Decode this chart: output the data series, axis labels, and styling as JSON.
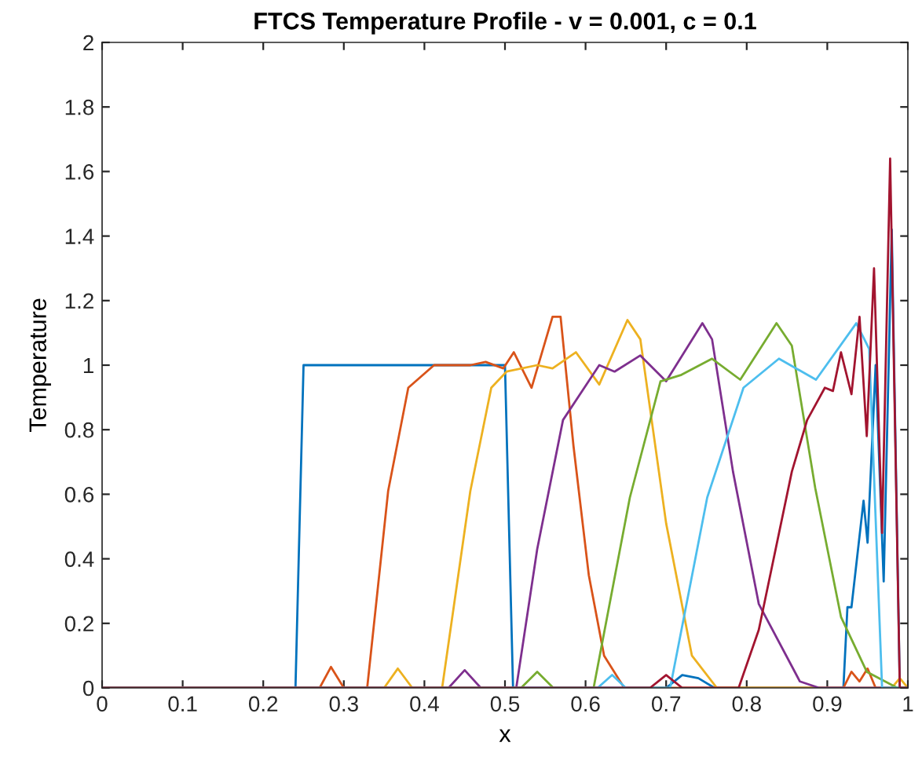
{
  "chart_data": {
    "type": "line",
    "title": "FTCS Temperature Profile - v = 0.001, c = 0.1",
    "xlabel": "x",
    "ylabel": "Temperature",
    "xlim": [
      0,
      1
    ],
    "ylim": [
      0,
      2
    ],
    "xticks": [
      0,
      0.1,
      0.2,
      0.3,
      0.4,
      0.5,
      0.6,
      0.7,
      0.8,
      0.9,
      1
    ],
    "yticks": [
      0,
      0.2,
      0.4,
      0.6,
      0.8,
      1,
      1.2,
      1.4,
      1.6,
      1.8,
      2
    ],
    "grid": false,
    "legend": false,
    "marker": "none",
    "line_style": "solid",
    "series": [
      {
        "color": "#0072bd",
        "x": [
          0,
          0.24,
          0.25,
          0.5,
          0.51,
          0.7,
          0.72,
          0.74,
          0.76,
          0.92,
          0.925,
          0.93,
          0.945,
          0.95,
          0.96,
          0.97,
          0.98,
          0.99,
          1
        ],
        "values": [
          0,
          0,
          1,
          1,
          0,
          0,
          0.04,
          0.03,
          0,
          0,
          0.25,
          0.25,
          0.58,
          0.45,
          1.0,
          0.33,
          1.42,
          0,
          0
        ]
      },
      {
        "color": "#d95319",
        "x": [
          0,
          0.27,
          0.284,
          0.3,
          0.329,
          0.355,
          0.38,
          0.412,
          0.457,
          0.476,
          0.498,
          0.511,
          0.533,
          0.559,
          0.569,
          0.585,
          0.604,
          0.623,
          0.648,
          0.92,
          0.93,
          0.94,
          0.95,
          0.96,
          1
        ],
        "values": [
          0,
          0,
          0.065,
          0,
          0,
          0.61,
          0.93,
          1.0,
          1.0,
          1.01,
          0.99,
          1.04,
          0.93,
          1.15,
          1.15,
          0.75,
          0.35,
          0.1,
          0,
          0,
          0.05,
          0.02,
          0.06,
          0,
          0
        ]
      },
      {
        "color": "#edb120",
        "x": [
          0,
          0.35,
          0.367,
          0.385,
          0.422,
          0.457,
          0.483,
          0.502,
          0.54,
          0.559,
          0.588,
          0.617,
          0.652,
          0.668,
          0.7,
          0.732,
          0.763,
          0.98,
          0.99,
          1
        ],
        "values": [
          0,
          0,
          0.06,
          0,
          0,
          0.61,
          0.93,
          0.98,
          1.0,
          0.99,
          1.04,
          0.94,
          1.14,
          1.08,
          0.51,
          0.1,
          0,
          0,
          0.03,
          0
        ]
      },
      {
        "color": "#7e2f8e",
        "x": [
          0,
          0.43,
          0.45,
          0.47,
          0.514,
          0.54,
          0.572,
          0.617,
          0.636,
          0.668,
          0.7,
          0.745,
          0.757,
          0.783,
          0.815,
          0.866,
          0.89,
          1
        ],
        "values": [
          0,
          0,
          0.055,
          0,
          0,
          0.43,
          0.83,
          1.0,
          0.98,
          1.03,
          0.95,
          1.13,
          1.08,
          0.67,
          0.26,
          0.02,
          0,
          0
        ]
      },
      {
        "color": "#77ac30",
        "x": [
          0,
          0.52,
          0.54,
          0.56,
          0.61,
          0.655,
          0.693,
          0.719,
          0.757,
          0.792,
          0.837,
          0.856,
          0.885,
          0.917,
          0.949,
          0.987,
          1
        ],
        "values": [
          0,
          0,
          0.05,
          0,
          0,
          0.59,
          0.95,
          0.97,
          1.02,
          0.955,
          1.13,
          1.06,
          0.62,
          0.22,
          0.05,
          0,
          0
        ]
      },
      {
        "color": "#4dbeee",
        "x": [
          0,
          0.615,
          0.633,
          0.65,
          0.705,
          0.751,
          0.796,
          0.84,
          0.886,
          0.936,
          0.952,
          0.968,
          1
        ],
        "values": [
          0,
          0,
          0.04,
          0,
          0,
          0.59,
          0.93,
          1.02,
          0.955,
          1.13,
          1.05,
          0,
          0
        ]
      },
      {
        "color": "#a2142f",
        "x": [
          0,
          0.68,
          0.7,
          0.72,
          0.79,
          0.815,
          0.856,
          0.875,
          0.897,
          0.907,
          0.917,
          0.93,
          0.94,
          0.949,
          0.958,
          0.968,
          0.978,
          0.99,
          1
        ],
        "values": [
          0,
          0,
          0.04,
          0,
          0,
          0.18,
          0.67,
          0.83,
          0.93,
          0.92,
          1.04,
          0.91,
          1.15,
          0.78,
          1.3,
          0.48,
          1.64,
          0,
          0
        ]
      }
    ]
  }
}
